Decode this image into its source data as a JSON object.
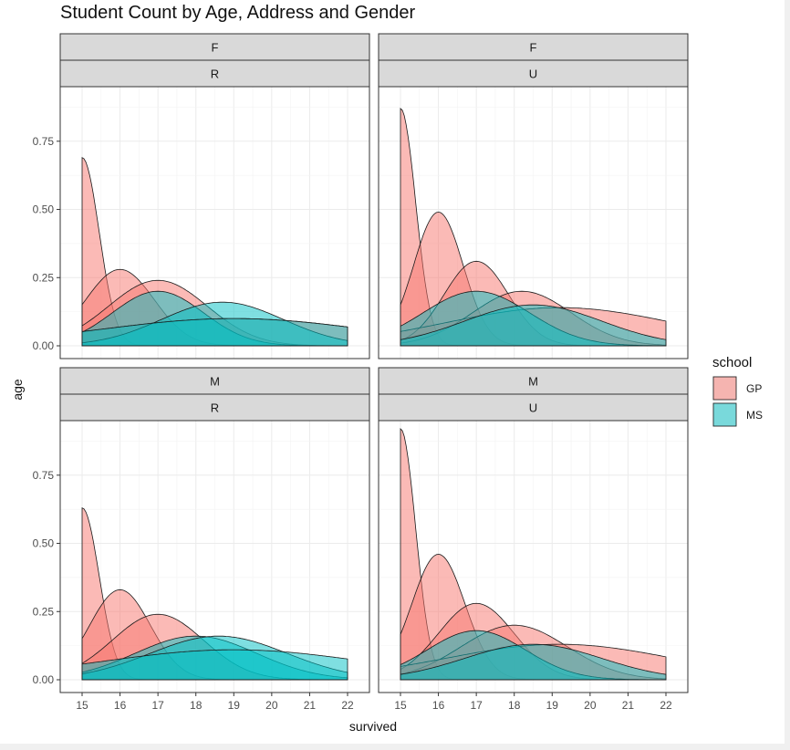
{
  "chart_data": {
    "type": "area",
    "title": "Student Count by Age, Address and Gender",
    "xlabel": "survived",
    "ylabel": "age",
    "x_ticks": [
      15,
      16,
      17,
      18,
      19,
      20,
      21,
      22
    ],
    "y_ticks": [
      "0.00",
      "0.25",
      "0.50",
      "0.75"
    ],
    "xlim": [
      15,
      22
    ],
    "ylim": [
      0,
      0.95
    ],
    "legend": {
      "title": "school",
      "placement": "right",
      "entries": [
        {
          "name": "GP",
          "color": "#F8766D"
        },
        {
          "name": "MS",
          "color": "#00BFC4"
        }
      ]
    },
    "panels": [
      {
        "row_strips": [
          "F",
          "R"
        ],
        "curves": [
          {
            "school": "GP",
            "peak_x": 15,
            "peak_y": 0.69,
            "sd": 0.45
          },
          {
            "school": "GP",
            "peak_x": 16,
            "peak_y": 0.28,
            "sd": 0.9
          },
          {
            "school": "GP",
            "peak_x": 17,
            "peak_y": 0.24,
            "sd": 1.3
          },
          {
            "school": "GP",
            "peak_x": 19,
            "peak_y": 0.1,
            "sd": 3.5
          },
          {
            "school": "MS",
            "peak_x": 17,
            "peak_y": 0.2,
            "sd": 1.2
          },
          {
            "school": "MS",
            "peak_x": 18.7,
            "peak_y": 0.16,
            "sd": 1.6
          },
          {
            "school": "MS",
            "peak_x": 19,
            "peak_y": 0.1,
            "sd": 3.5
          }
        ]
      },
      {
        "row_strips": [
          "F",
          "U"
        ],
        "curves": [
          {
            "school": "GP",
            "peak_x": 15,
            "peak_y": 0.87,
            "sd": 0.4
          },
          {
            "school": "GP",
            "peak_x": 16,
            "peak_y": 0.49,
            "sd": 0.65
          },
          {
            "school": "GP",
            "peak_x": 17,
            "peak_y": 0.31,
            "sd": 0.85
          },
          {
            "school": "GP",
            "peak_x": 18.2,
            "peak_y": 0.2,
            "sd": 1.3
          },
          {
            "school": "GP",
            "peak_x": 19.2,
            "peak_y": 0.14,
            "sd": 3.0
          },
          {
            "school": "MS",
            "peak_x": 17,
            "peak_y": 0.2,
            "sd": 1.4
          },
          {
            "school": "MS",
            "peak_x": 18.5,
            "peak_y": 0.15,
            "sd": 1.8
          }
        ]
      },
      {
        "row_strips": [
          "M",
          "R"
        ],
        "curves": [
          {
            "school": "GP",
            "peak_x": 15,
            "peak_y": 0.63,
            "sd": 0.45
          },
          {
            "school": "GP",
            "peak_x": 16,
            "peak_y": 0.33,
            "sd": 0.8
          },
          {
            "school": "GP",
            "peak_x": 17,
            "peak_y": 0.24,
            "sd": 1.2
          },
          {
            "school": "MS",
            "peak_x": 18,
            "peak_y": 0.16,
            "sd": 1.6
          },
          {
            "school": "MS",
            "peak_x": 18.6,
            "peak_y": 0.16,
            "sd": 1.8
          },
          {
            "school": "MS",
            "peak_x": 19,
            "peak_y": 0.11,
            "sd": 3.5
          }
        ]
      },
      {
        "row_strips": [
          "M",
          "U"
        ],
        "curves": [
          {
            "school": "GP",
            "peak_x": 15,
            "peak_y": 0.92,
            "sd": 0.4
          },
          {
            "school": "GP",
            "peak_x": 16,
            "peak_y": 0.46,
            "sd": 0.7
          },
          {
            "school": "GP",
            "peak_x": 17,
            "peak_y": 0.28,
            "sd": 1.0
          },
          {
            "school": "GP",
            "peak_x": 18,
            "peak_y": 0.2,
            "sd": 1.4
          },
          {
            "school": "GP",
            "peak_x": 19.2,
            "peak_y": 0.13,
            "sd": 3.0
          },
          {
            "school": "MS",
            "peak_x": 17,
            "peak_y": 0.18,
            "sd": 1.3
          },
          {
            "school": "MS",
            "peak_x": 18.5,
            "peak_y": 0.13,
            "sd": 1.8
          }
        ]
      }
    ]
  }
}
